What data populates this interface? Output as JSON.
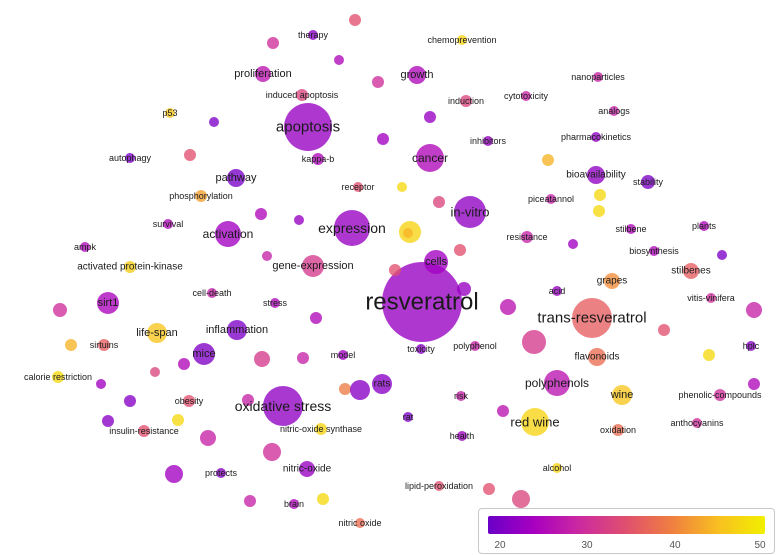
{
  "palette": [
    "#6a00c8",
    "#a800c0",
    "#cc2aa0",
    "#e0506e",
    "#f08040",
    "#f8c020",
    "#f2f000"
  ],
  "nodes": [
    {
      "label": "resveratrol",
      "s": 40,
      "c": 0.12
    },
    {
      "label": "trans-resveratrol",
      "s": 20,
      "c": 0.55
    },
    {
      "label": "apoptosis",
      "s": 24,
      "c": 0.12
    },
    {
      "label": "oxidative stress",
      "s": 20,
      "c": 0.1
    },
    {
      "label": "expression",
      "s": 18,
      "c": 0.12
    },
    {
      "label": "in-vitro",
      "s": 16,
      "c": 0.1
    },
    {
      "label": "red wine",
      "s": 14,
      "c": 0.9
    },
    {
      "label": "cancer",
      "s": 14,
      "c": 0.2
    },
    {
      "label": "polyphenols",
      "s": 13,
      "c": 0.25
    },
    {
      "label": "activation",
      "s": 13,
      "c": 0.15
    },
    {
      "label": "gene-expression",
      "s": 11,
      "c": 0.4
    },
    {
      "label": "cells",
      "s": 12,
      "c": 0.15
    },
    {
      "label": "inflammation",
      "s": 10,
      "c": 0.05
    },
    {
      "label": "mice",
      "s": 11,
      "c": 0.06
    },
    {
      "label": "sirt1",
      "s": 11,
      "c": 0.18
    },
    {
      "label": "life-span",
      "s": 10,
      "c": 0.85
    },
    {
      "label": "wine",
      "s": 10,
      "c": 0.85
    },
    {
      "label": "flavonoids",
      "s": 9,
      "c": 0.6
    },
    {
      "label": "pathway",
      "s": 9,
      "c": 0.04
    },
    {
      "label": "rats",
      "s": 10,
      "c": 0.08
    },
    {
      "label": "growth",
      "s": 9,
      "c": 0.2
    },
    {
      "label": "proliferation",
      "s": 8,
      "c": 0.25
    },
    {
      "label": "bioavailability",
      "s": 9,
      "c": 0.1
    },
    {
      "label": "grapes",
      "s": 8,
      "c": 0.7
    },
    {
      "label": "stilbenes",
      "s": 8,
      "c": 0.55
    },
    {
      "label": "nitric-oxide",
      "s": 8,
      "c": 0.12
    },
    {
      "label": "nitric-oxide synthase",
      "s": 6,
      "c": 0.9
    },
    {
      "label": "phosphorylation",
      "s": 6,
      "c": 0.75
    },
    {
      "label": "activated protein-kinase",
      "s": 6,
      "c": 0.88
    },
    {
      "label": "calorie restriction",
      "s": 6,
      "c": 0.92
    },
    {
      "label": "insulin-resistance",
      "s": 6,
      "c": 0.5
    },
    {
      "label": "induced apoptosis",
      "s": 6,
      "c": 0.45
    },
    {
      "label": "induction",
      "s": 6,
      "c": 0.45
    },
    {
      "label": "chemoprevention",
      "s": 5,
      "c": 0.9
    },
    {
      "label": "therapy",
      "s": 5,
      "c": 0.08
    },
    {
      "label": "p53",
      "s": 5,
      "c": 0.85
    },
    {
      "label": "autophagy",
      "s": 5,
      "c": 0.05
    },
    {
      "label": "kappa-b",
      "s": 6,
      "c": 0.2
    },
    {
      "label": "receptor",
      "s": 5,
      "c": 0.5
    },
    {
      "label": "survival",
      "s": 5,
      "c": 0.2
    },
    {
      "label": "ampk",
      "s": 5,
      "c": 0.2
    },
    {
      "label": "cell-death",
      "s": 5,
      "c": 0.3
    },
    {
      "label": "stress",
      "s": 5,
      "c": 0.2
    },
    {
      "label": "sirtuins",
      "s": 6,
      "c": 0.55
    },
    {
      "label": "model",
      "s": 5,
      "c": 0.15
    },
    {
      "label": "toxicity",
      "s": 5,
      "c": 0.08
    },
    {
      "label": "polyphenol",
      "s": 5,
      "c": 0.3
    },
    {
      "label": "obesity",
      "s": 6,
      "c": 0.5
    },
    {
      "label": "risk",
      "s": 5,
      "c": 0.3
    },
    {
      "label": "rat",
      "s": 5,
      "c": 0.05
    },
    {
      "label": "health",
      "s": 5,
      "c": 0.15
    },
    {
      "label": "oxidation",
      "s": 6,
      "c": 0.6
    },
    {
      "label": "anthocyanins",
      "s": 5,
      "c": 0.35
    },
    {
      "label": "phenolic-compounds",
      "s": 6,
      "c": 0.35
    },
    {
      "label": "hplc",
      "s": 5,
      "c": 0.08
    },
    {
      "label": "vitis-vinifera",
      "s": 5,
      "c": 0.35
    },
    {
      "label": "acid",
      "s": 5,
      "c": 0.12
    },
    {
      "label": "resistance",
      "s": 6,
      "c": 0.3
    },
    {
      "label": "piceatannol",
      "s": 5,
      "c": 0.3
    },
    {
      "label": "stilbene",
      "s": 5,
      "c": 0.2
    },
    {
      "label": "plants",
      "s": 5,
      "c": 0.2
    },
    {
      "label": "biosynthesis",
      "s": 5,
      "c": 0.2
    },
    {
      "label": "stability",
      "s": 7,
      "c": 0.05
    },
    {
      "label": "pharmacokinetics",
      "s": 5,
      "c": 0.1
    },
    {
      "label": "inhibitors",
      "s": 5,
      "c": 0.12
    },
    {
      "label": "analogs",
      "s": 5,
      "c": 0.3
    },
    {
      "label": "nanoparticles",
      "s": 5,
      "c": 0.3
    },
    {
      "label": "cytotoxicity",
      "s": 5,
      "c": 0.3
    },
    {
      "label": "lipid-peroxidation",
      "s": 5,
      "c": 0.5
    },
    {
      "label": "alcohol",
      "s": 5,
      "c": 0.9
    },
    {
      "label": "brain",
      "s": 5,
      "c": 0.2
    },
    {
      "label": "protects",
      "s": 5,
      "c": 0.08
    },
    {
      "label": "nitric oxide",
      "s": 5,
      "c": 0.6
    },
    {
      "label": "",
      "s": 6,
      "c": 0.5
    },
    {
      "label": "",
      "s": 6,
      "c": 0.35
    },
    {
      "label": "",
      "s": 5,
      "c": 0.2
    },
    {
      "label": "",
      "s": 6,
      "c": 0.35
    },
    {
      "label": "",
      "s": 5,
      "c": 0.05
    },
    {
      "label": "",
      "s": 6,
      "c": 0.12
    },
    {
      "label": "",
      "s": 6,
      "c": 0.5
    },
    {
      "label": "",
      "s": 6,
      "c": 0.15
    },
    {
      "label": "",
      "s": 5,
      "c": 0.92
    },
    {
      "label": "",
      "s": 6,
      "c": 0.45
    },
    {
      "label": "",
      "s": 6,
      "c": 0.2
    },
    {
      "label": "",
      "s": 5,
      "c": 0.12
    },
    {
      "label": "",
      "s": 11,
      "c": 0.9
    },
    {
      "label": "",
      "s": 5,
      "c": 0.3
    },
    {
      "label": "",
      "s": 6,
      "c": 0.5
    },
    {
      "label": "",
      "s": 6,
      "c": 0.5
    },
    {
      "label": "",
      "s": 5,
      "c": 0.8
    },
    {
      "label": "",
      "s": 7,
      "c": 0.12
    },
    {
      "label": "",
      "s": 8,
      "c": 0.25
    },
    {
      "label": "",
      "s": 12,
      "c": 0.4
    },
    {
      "label": "",
      "s": 6,
      "c": 0.2
    },
    {
      "label": "",
      "s": 6,
      "c": 0.25
    },
    {
      "label": "",
      "s": 6,
      "c": 0.65
    },
    {
      "label": "",
      "s": 6,
      "c": 0.3
    },
    {
      "label": "",
      "s": 8,
      "c": 0.4
    },
    {
      "label": "",
      "s": 6,
      "c": 0.3
    },
    {
      "label": "",
      "s": 8,
      "c": 0.3
    },
    {
      "label": "",
      "s": 9,
      "c": 0.35
    },
    {
      "label": "",
      "s": 10,
      "c": 0.08
    },
    {
      "label": "",
      "s": 9,
      "c": 0.15
    },
    {
      "label": "",
      "s": 6,
      "c": 0.3
    },
    {
      "label": "",
      "s": 6,
      "c": 0.92
    },
    {
      "label": "",
      "s": 6,
      "c": 0.5
    },
    {
      "label": "",
      "s": 9,
      "c": 0.45
    },
    {
      "label": "",
      "s": 5,
      "c": 0.15
    },
    {
      "label": "",
      "s": 6,
      "c": 0.92
    },
    {
      "label": "",
      "s": 6,
      "c": 0.92
    },
    {
      "label": "",
      "s": 6,
      "c": 0.8
    },
    {
      "label": "",
      "s": 6,
      "c": 0.5
    },
    {
      "label": "",
      "s": 6,
      "c": 0.2
    },
    {
      "label": "",
      "s": 6,
      "c": 0.92
    },
    {
      "label": "",
      "s": 8,
      "c": 0.3
    },
    {
      "label": "",
      "s": 5,
      "c": 0.05
    },
    {
      "label": "",
      "s": 7,
      "c": 0.35
    },
    {
      "label": "",
      "s": 6,
      "c": 0.8
    },
    {
      "label": "",
      "s": 5,
      "c": 0.15
    },
    {
      "label": "",
      "s": 5,
      "c": 0.45
    },
    {
      "label": "",
      "s": 6,
      "c": 0.2
    },
    {
      "label": "",
      "s": 6,
      "c": 0.08
    },
    {
      "label": "",
      "s": 6,
      "c": 0.08
    },
    {
      "label": "",
      "s": 6,
      "c": 0.92
    },
    {
      "label": "",
      "s": 9,
      "c": 0.05
    },
    {
      "label": "",
      "s": 7,
      "c": 0.05
    },
    {
      "label": "",
      "s": 5,
      "c": 0.12
    },
    {
      "label": "",
      "s": 5,
      "c": 0.35
    },
    {
      "label": "",
      "s": 5,
      "c": 0.5
    },
    {
      "label": "",
      "s": 5,
      "c": 0.08
    },
    {
      "label": "",
      "s": 6,
      "c": 0.12
    }
  ],
  "legend": {
    "ticks": [
      "20",
      "30",
      "40",
      "50"
    ]
  }
}
